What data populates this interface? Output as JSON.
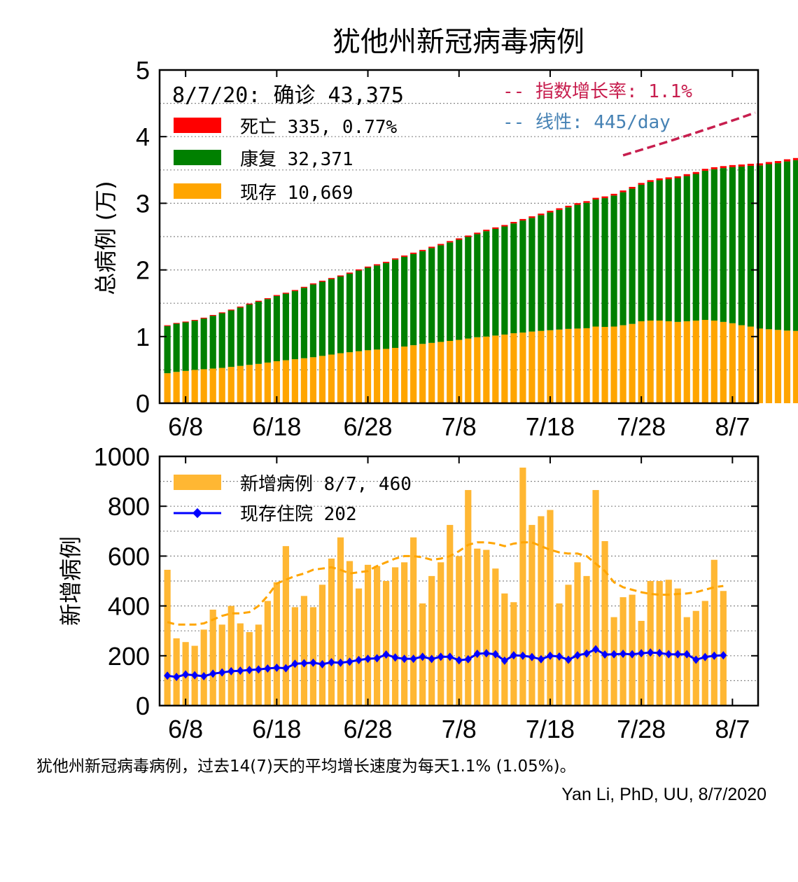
{
  "figure": {
    "caption": "犹他州新冠病毒病例，过去14(7)天的平均增长速度为每天1.1% (1.05%)。",
    "credit": "Yan Li, PhD, UU, 8/7/2020"
  },
  "colors": {
    "deaths": "#ff0000",
    "recovered": "#008000",
    "active": "#ffa500",
    "new_cases": "#ffb733",
    "hospitalized": "#0000ff",
    "exp_fit": "#c71e4e",
    "linear_fit": "#4682b4"
  },
  "chart_data": [
    {
      "type": "bar",
      "stacked": true,
      "title": "犹他州新冠病毒病例",
      "ylabel": "总病例 (万)",
      "xlabel": "",
      "ylim": [
        0,
        5
      ],
      "yticks": [
        "0",
        "1",
        "2",
        "3",
        "4",
        "5"
      ],
      "xticks": [
        "6/8",
        "6/18",
        "6/28",
        "7/8",
        "7/18",
        "7/28",
        "8/7"
      ],
      "grid": "horizontal dotted",
      "legend_placement": "top-left",
      "summary": "8/7/20: 确诊 43,375",
      "x_start": "6/6",
      "x_end": "8/7",
      "series": [
        {
          "name": "现存",
          "label": "现存 10,669",
          "values": [
            0.45,
            0.47,
            0.485,
            0.5,
            0.51,
            0.52,
            0.53,
            0.545,
            0.56,
            0.575,
            0.59,
            0.61,
            0.63,
            0.645,
            0.66,
            0.675,
            0.69,
            0.71,
            0.73,
            0.75,
            0.765,
            0.78,
            0.795,
            0.805,
            0.815,
            0.83,
            0.85,
            0.87,
            0.89,
            0.905,
            0.92,
            0.935,
            0.95,
            0.97,
            0.99,
            1.0,
            1.015,
            1.03,
            1.05,
            1.06,
            1.075,
            1.085,
            1.095,
            1.105,
            1.115,
            1.12,
            1.125,
            1.15,
            1.145,
            1.15,
            1.17,
            1.19,
            1.23,
            1.24,
            1.24,
            1.23,
            1.22,
            1.23,
            1.24,
            1.25,
            1.24,
            1.22,
            1.2,
            1.17,
            1.15,
            1.12,
            1.11,
            1.1,
            1.09,
            1.085,
            1.075,
            1.06,
            1.035,
            1.01,
            1.0,
            1.067
          ]
        },
        {
          "name": "康复",
          "label": "康复 32,371",
          "values": [
            0.708,
            0.722,
            0.728,
            0.738,
            0.76,
            0.791,
            0.82,
            0.847,
            0.876,
            0.906,
            0.933,
            0.952,
            0.978,
            0.998,
            1.024,
            1.056,
            1.092,
            1.112,
            1.133,
            1.151,
            1.178,
            1.211,
            1.238,
            1.262,
            1.289,
            1.325,
            1.347,
            1.37,
            1.392,
            1.423,
            1.45,
            1.478,
            1.503,
            1.525,
            1.548,
            1.582,
            1.601,
            1.622,
            1.648,
            1.681,
            1.706,
            1.737,
            1.768,
            1.796,
            1.824,
            1.857,
            1.882,
            1.907,
            1.932,
            1.966,
            1.996,
            2.029,
            2.048,
            2.08,
            2.106,
            2.131,
            2.157,
            2.178,
            2.2,
            2.238,
            2.271,
            2.308,
            2.343,
            2.381,
            2.412,
            2.448,
            2.477,
            2.502,
            2.538,
            2.562,
            2.594,
            2.627,
            2.655,
            2.7,
            2.74,
            3.237
          ]
        },
        {
          "name": "死亡",
          "label": "死亡 335, 0.77%",
          "values": [
            0.012,
            0.012,
            0.012,
            0.012,
            0.013,
            0.013,
            0.013,
            0.013,
            0.014,
            0.014,
            0.014,
            0.014,
            0.015,
            0.015,
            0.015,
            0.015,
            0.016,
            0.016,
            0.016,
            0.016,
            0.017,
            0.017,
            0.017,
            0.018,
            0.018,
            0.018,
            0.019,
            0.019,
            0.019,
            0.02,
            0.02,
            0.02,
            0.021,
            0.021,
            0.021,
            0.021,
            0.022,
            0.022,
            0.022,
            0.023,
            0.023,
            0.023,
            0.024,
            0.024,
            0.024,
            0.025,
            0.025,
            0.025,
            0.026,
            0.026,
            0.026,
            0.027,
            0.027,
            0.027,
            0.028,
            0.028,
            0.028,
            0.029,
            0.029,
            0.029,
            0.03,
            0.03,
            0.03,
            0.031,
            0.031,
            0.031,
            0.032,
            0.032,
            0.032,
            0.032,
            0.033,
            0.033,
            0.033,
            0.033,
            0.034,
            0.034
          ]
        }
      ],
      "fits": [
        {
          "name": "指数增长率",
          "label": "-- 指数增长率: 1.1%",
          "style": "dashed",
          "x_range_days": [
            50,
            66
          ],
          "y_start": 3.72,
          "growth_per_day": 0.011
        },
        {
          "name": "线性",
          "label": "-- 线性: 445/day",
          "style": "dashed"
        }
      ]
    },
    {
      "type": "bar+line",
      "ylabel": "新增病例",
      "xlabel": "",
      "ylim": [
        0,
        1000
      ],
      "yticks": [
        "0",
        "200",
        "400",
        "600",
        "800",
        "1000"
      ],
      "xticks": [
        "6/8",
        "6/18",
        "6/28",
        "7/8",
        "7/18",
        "7/28",
        "8/7"
      ],
      "grid": "horizontal dotted",
      "legend_placement": "top-left",
      "x_start": "6/6",
      "x_end": "8/7",
      "series": [
        {
          "name": "新增病例",
          "label": "新增病例 8/7, 460",
          "type": "bar",
          "values": [
            545,
            270,
            255,
            240,
            305,
            385,
            325,
            400,
            330,
            295,
            325,
            420,
            495,
            640,
            395,
            440,
            395,
            485,
            590,
            675,
            580,
            470,
            565,
            560,
            500,
            555,
            575,
            675,
            410,
            520,
            575,
            725,
            600,
            865,
            630,
            625,
            550,
            450,
            415,
            955,
            725,
            760,
            785,
            410,
            485,
            575,
            520,
            865,
            660,
            355,
            435,
            445,
            340,
            500,
            500,
            505,
            470,
            355,
            380,
            420,
            585,
            460
          ]
        },
        {
          "name": "新增病例-7日均值",
          "type": "line",
          "style": "dashed",
          "values": [
            335,
            325,
            325,
            325,
            330,
            345,
            360,
            370,
            370,
            375,
            400,
            440,
            490,
            505,
            520,
            530,
            545,
            550,
            555,
            545,
            530,
            535,
            540,
            560,
            575,
            590,
            600,
            600,
            595,
            585,
            590,
            600,
            620,
            645,
            655,
            655,
            650,
            640,
            650,
            655,
            655,
            640,
            625,
            615,
            610,
            610,
            600,
            570,
            540,
            495,
            475,
            465,
            455,
            448,
            445,
            445,
            448,
            450,
            455,
            465,
            475,
            480
          ]
        },
        {
          "name": "现存住院",
          "label": "现存住院 202",
          "type": "line",
          "marker": "diamond",
          "values": [
            120,
            115,
            125,
            122,
            118,
            128,
            133,
            138,
            140,
            143,
            145,
            149,
            152,
            150,
            168,
            170,
            172,
            166,
            174,
            172,
            176,
            183,
            188,
            190,
            205,
            193,
            188,
            188,
            196,
            187,
            196,
            196,
            182,
            186,
            208,
            210,
            206,
            180,
            202,
            200,
            195,
            186,
            200,
            197,
            184,
            202,
            209,
            226,
            205,
            206,
            208,
            206,
            210,
            213,
            211,
            206,
            206,
            206,
            184,
            195,
            200,
            202
          ]
        }
      ]
    }
  ]
}
